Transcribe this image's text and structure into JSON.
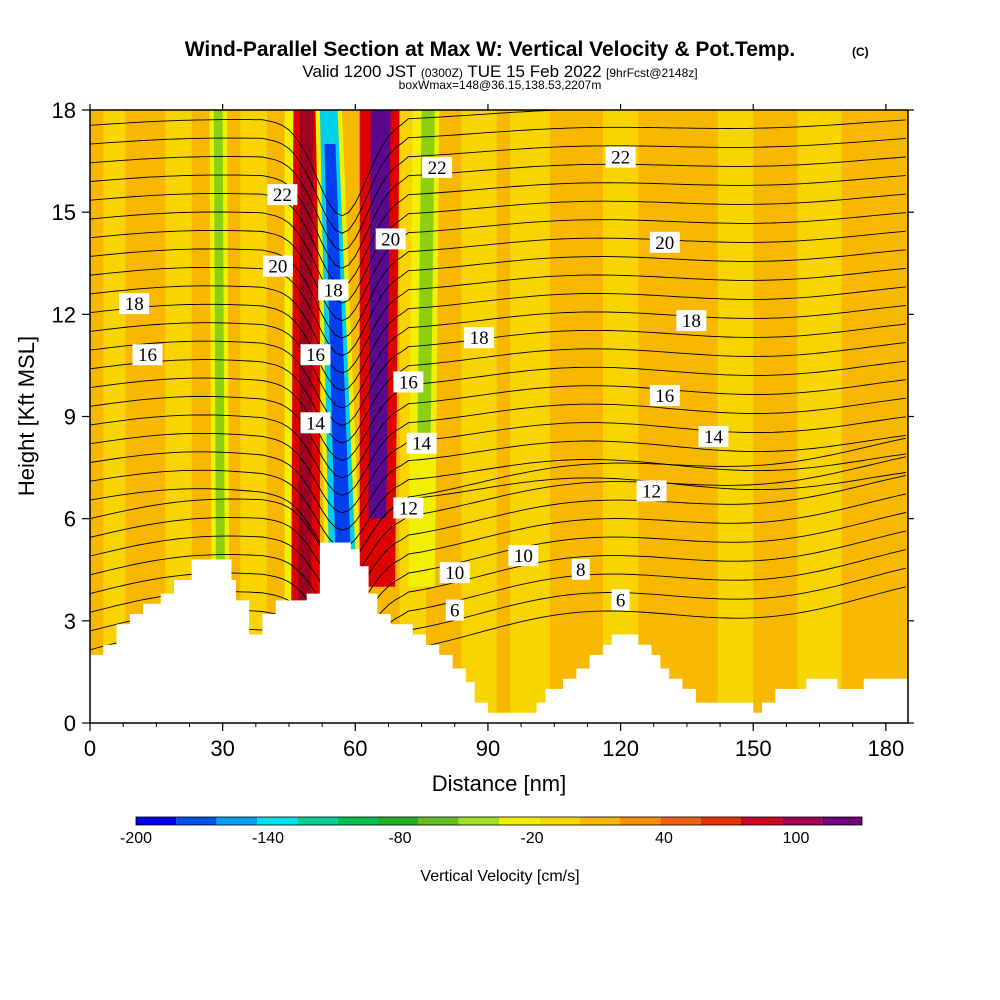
{
  "chart_data": {
    "type": "contour",
    "title": "Wind-Parallel Section at Max W: Vertical Velocity & Pot.Temp.",
    "title_mark": "(C)",
    "subtitle_parts": [
      "Valid 1200 JST",
      "(0300Z)",
      "TUE 15 Feb 2022",
      "[9hrFcst@2148z]"
    ],
    "subtitle2": "boxWmax=148@36.15,138.53,2207m",
    "xlabel": "Distance [nm]",
    "ylabel": "Height [Kft MSL]",
    "xlim": [
      0,
      185
    ],
    "ylim": [
      0,
      18
    ],
    "xticks": [
      0,
      30,
      60,
      90,
      120,
      150,
      180
    ],
    "yticks": [
      0,
      3,
      6,
      9,
      12,
      15,
      18
    ],
    "colorbar": {
      "label": "Vertical Velocity [cm/s]",
      "tick_labels": [
        "-200",
        "-140",
        "-80",
        "-20",
        "40",
        "100"
      ],
      "tick_values": [
        -200,
        -140,
        -80,
        -20,
        40,
        100
      ],
      "min": -200,
      "max": 130,
      "colors": [
        "#0000f0",
        "#0050f0",
        "#00a0f0",
        "#00e0f0",
        "#00d090",
        "#00c050",
        "#20b020",
        "#60c020",
        "#a0e020",
        "#f0f000",
        "#f8d800",
        "#f8b800",
        "#f89000",
        "#f06010",
        "#e83000",
        "#d00020",
        "#a00050",
        "#700080"
      ]
    },
    "field_colors": {
      "background": "#f8b800",
      "light_bands": "#f8d800",
      "green": "#8cd010",
      "yellow": "#f0f000",
      "red": "#e00000",
      "darkred": "#a00020",
      "purple": "#5a0890",
      "blue": "#0040f0",
      "cyan": "#00d0e8"
    },
    "contour_labels": [
      {
        "text": "22",
        "x": 43.5,
        "y": 15.5
      },
      {
        "text": "20",
        "x": 42.5,
        "y": 13.4
      },
      {
        "text": "18",
        "x": 10,
        "y": 12.3
      },
      {
        "text": "16",
        "x": 13,
        "y": 10.8
      },
      {
        "text": "18",
        "x": 55,
        "y": 12.7
      },
      {
        "text": "16",
        "x": 51,
        "y": 10.8
      },
      {
        "text": "14",
        "x": 51,
        "y": 8.8
      },
      {
        "text": "20",
        "x": 68,
        "y": 14.2
      },
      {
        "text": "22",
        "x": 78.5,
        "y": 16.3
      },
      {
        "text": "22",
        "x": 120,
        "y": 16.6
      },
      {
        "text": "20",
        "x": 130,
        "y": 14.1
      },
      {
        "text": "18",
        "x": 88,
        "y": 11.3
      },
      {
        "text": "18",
        "x": 136,
        "y": 11.8
      },
      {
        "text": "16",
        "x": 72,
        "y": 10.0
      },
      {
        "text": "16",
        "x": 130,
        "y": 9.6
      },
      {
        "text": "14",
        "x": 75,
        "y": 8.2
      },
      {
        "text": "14",
        "x": 141,
        "y": 8.4
      },
      {
        "text": "12",
        "x": 72,
        "y": 6.3
      },
      {
        "text": "12",
        "x": 127,
        "y": 6.8
      },
      {
        "text": "10",
        "x": 82.5,
        "y": 4.4
      },
      {
        "text": "10",
        "x": 98,
        "y": 4.9
      },
      {
        "text": "8",
        "x": 111,
        "y": 4.5
      },
      {
        "text": "6",
        "x": 82.5,
        "y": 3.3
      },
      {
        "text": "6",
        "x": 120,
        "y": 3.6
      }
    ],
    "terrain": [
      [
        0,
        2
      ],
      [
        3,
        2
      ],
      [
        3,
        2.3
      ],
      [
        6,
        2.3
      ],
      [
        6,
        2.9
      ],
      [
        9,
        2.9
      ],
      [
        9,
        3.2
      ],
      [
        12,
        3.2
      ],
      [
        12,
        3.5
      ],
      [
        16,
        3.5
      ],
      [
        16,
        3.8
      ],
      [
        19,
        3.8
      ],
      [
        19,
        4.2
      ],
      [
        23,
        4.2
      ],
      [
        23,
        4.8
      ],
      [
        32,
        4.8
      ],
      [
        32,
        4.2
      ],
      [
        33,
        4.2
      ],
      [
        33,
        3.6
      ],
      [
        36,
        3.6
      ],
      [
        36,
        2.6
      ],
      [
        39,
        2.6
      ],
      [
        39,
        3.2
      ],
      [
        42,
        3.2
      ],
      [
        42,
        3.6
      ],
      [
        49,
        3.6
      ],
      [
        49,
        3.8
      ],
      [
        52,
        3.8
      ],
      [
        52,
        5.3
      ],
      [
        59,
        5.3
      ],
      [
        59,
        5.1
      ],
      [
        61,
        5.1
      ],
      [
        61,
        4.6
      ],
      [
        63,
        4.6
      ],
      [
        63,
        3.8
      ],
      [
        65,
        3.8
      ],
      [
        65,
        3.2
      ],
      [
        68,
        3.2
      ],
      [
        68,
        2.9
      ],
      [
        73,
        2.9
      ],
      [
        73,
        2.6
      ],
      [
        76,
        2.6
      ],
      [
        76,
        2.3
      ],
      [
        79,
        2.3
      ],
      [
        79,
        2
      ],
      [
        82,
        2
      ],
      [
        82,
        1.6
      ],
      [
        85,
        1.6
      ],
      [
        85,
        1.2
      ],
      [
        87,
        1.2
      ],
      [
        87,
        0.6
      ],
      [
        90,
        0.6
      ],
      [
        90,
        0.3
      ],
      [
        101,
        0.3
      ],
      [
        101,
        0.6
      ],
      [
        103,
        0.6
      ],
      [
        103,
        1
      ],
      [
        107,
        1
      ],
      [
        107,
        1.3
      ],
      [
        110,
        1.3
      ],
      [
        110,
        1.6
      ],
      [
        113,
        1.6
      ],
      [
        113,
        2
      ],
      [
        116,
        2
      ],
      [
        116,
        2.3
      ],
      [
        118,
        2.3
      ],
      [
        118,
        2.6
      ],
      [
        124,
        2.6
      ],
      [
        124,
        2.3
      ],
      [
        127,
        2.3
      ],
      [
        127,
        2
      ],
      [
        129,
        2
      ],
      [
        129,
        1.6
      ],
      [
        131,
        1.6
      ],
      [
        131,
        1.3
      ],
      [
        134,
        1.3
      ],
      [
        134,
        1
      ],
      [
        137,
        1
      ],
      [
        137,
        0.6
      ],
      [
        150,
        0.6
      ],
      [
        150,
        0.3
      ],
      [
        152,
        0.3
      ],
      [
        152,
        0.6
      ],
      [
        155,
        0.6
      ],
      [
        155,
        1
      ],
      [
        162,
        1
      ],
      [
        162,
        1.3
      ],
      [
        169,
        1.3
      ],
      [
        169,
        1
      ],
      [
        175,
        1
      ],
      [
        175,
        1.3
      ],
      [
        185,
        1.3
      ]
    ]
  }
}
